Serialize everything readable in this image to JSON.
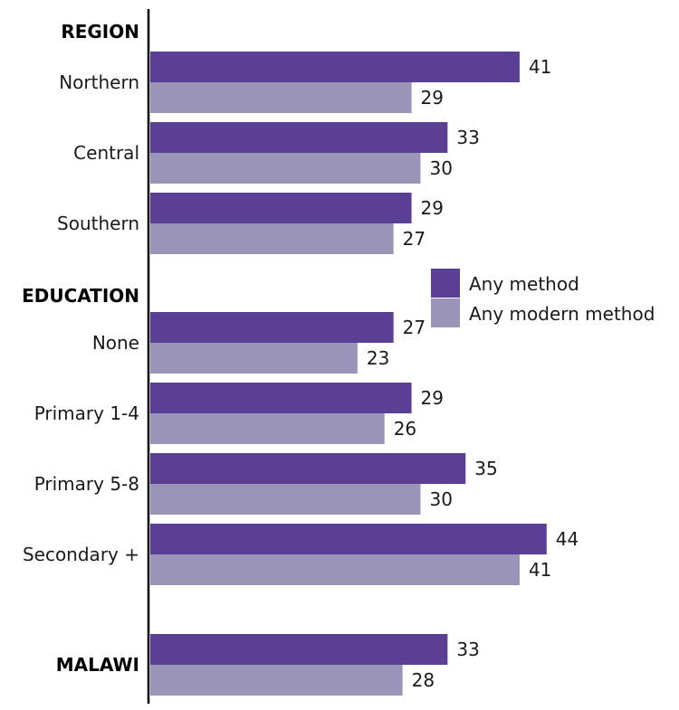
{
  "chart_data": {
    "type": "bar",
    "orientation": "horizontal",
    "xlim": [
      0,
      50
    ],
    "groups": [
      {
        "label": "REGION",
        "categories": [
          "Northern",
          "Central",
          "Southern"
        ]
      },
      {
        "label": "EDUCATION",
        "categories": [
          "None",
          "Primary 1-4",
          "Primary 5-8",
          "Secondary +"
        ]
      },
      {
        "label": "",
        "categories": [
          "MALAWI"
        ]
      }
    ],
    "categories": [
      "Northern",
      "Central",
      "Southern",
      "None",
      "Primary 1-4",
      "Primary 5-8",
      "Secondary +",
      "MALAWI"
    ],
    "series": [
      {
        "name": "Any method",
        "color": "#5b3f94",
        "values": [
          41,
          33,
          29,
          27,
          29,
          35,
          44,
          33
        ]
      },
      {
        "name": "Any modern method",
        "color": "#9a95b8",
        "values": [
          29,
          30,
          27,
          23,
          26,
          30,
          41,
          28
        ]
      }
    ],
    "grid": false,
    "legend_position": "right"
  }
}
